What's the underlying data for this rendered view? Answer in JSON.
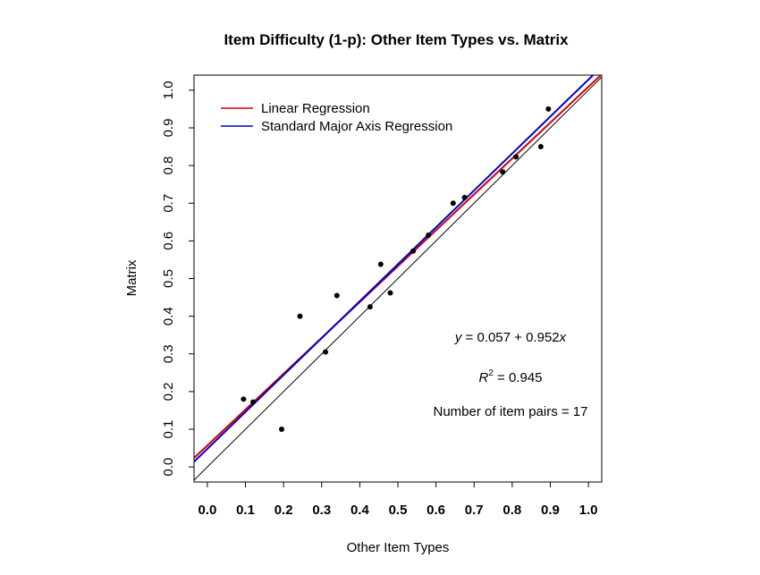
{
  "chart_data": {
    "type": "scatter",
    "title": "Item Difficulty (1-p): Other Item Types vs. Matrix",
    "xlabel": "Other Item Types",
    "ylabel": "Matrix",
    "xlim": [
      -0.035,
      1.035
    ],
    "ylim": [
      -0.04,
      1.04
    ],
    "xticks": [
      "0.0",
      "0.1",
      "0.2",
      "0.3",
      "0.4",
      "0.5",
      "0.6",
      "0.7",
      "0.8",
      "0.9",
      "1.0"
    ],
    "yticks": [
      "0.0",
      "0.1",
      "0.2",
      "0.3",
      "0.4",
      "0.5",
      "0.6",
      "0.7",
      "0.8",
      "0.9",
      "1.0"
    ],
    "grid": false,
    "points": [
      {
        "x": 0.095,
        "y": 0.18
      },
      {
        "x": 0.12,
        "y": 0.172
      },
      {
        "x": 0.195,
        "y": 0.1
      },
      {
        "x": 0.243,
        "y": 0.4
      },
      {
        "x": 0.31,
        "y": 0.305
      },
      {
        "x": 0.34,
        "y": 0.455
      },
      {
        "x": 0.427,
        "y": 0.425
      },
      {
        "x": 0.455,
        "y": 0.538
      },
      {
        "x": 0.48,
        "y": 0.462
      },
      {
        "x": 0.54,
        "y": 0.573
      },
      {
        "x": 0.58,
        "y": 0.615
      },
      {
        "x": 0.645,
        "y": 0.7
      },
      {
        "x": 0.675,
        "y": 0.715
      },
      {
        "x": 0.775,
        "y": 0.783
      },
      {
        "x": 0.81,
        "y": 0.823
      },
      {
        "x": 0.875,
        "y": 0.85
      },
      {
        "x": 0.895,
        "y": 0.95
      }
    ],
    "lines": [
      {
        "name": "Linear Regression",
        "color": "#cc0000",
        "intercept": 0.057,
        "slope": 0.952
      },
      {
        "name": "Standard Major Axis Regression",
        "color": "#0000cc",
        "intercept": 0.048,
        "slope": 0.98
      }
    ],
    "reference_line": {
      "intercept": 0,
      "slope": 1,
      "color": "#000000"
    },
    "legend": {
      "position": "top-left"
    },
    "annotations": {
      "equation_prefix": "y",
      "equation_rhs": " = 0.057 + 0.952",
      "equation_var": "x",
      "r2_base": "R",
      "r2_exp": "2",
      "r2_rhs": " = 0.945",
      "pairs": "Number of item pairs = 17"
    }
  }
}
